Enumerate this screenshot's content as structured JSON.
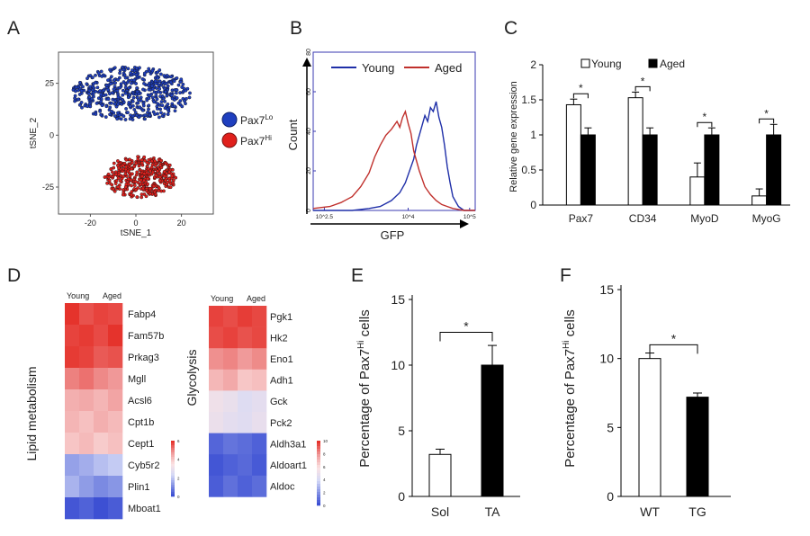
{
  "panel_labels": {
    "a": "A",
    "b": "B",
    "c": "C",
    "d": "D",
    "e": "E",
    "f": "F"
  },
  "chart_data": [
    {
      "panel": "A",
      "type": "scatter",
      "xlabel": "tSNE_1",
      "ylabel": "tSNE_2",
      "xticks": [
        -20,
        0,
        20
      ],
      "yticks": [
        25,
        0,
        -25
      ],
      "xlim": [
        -34,
        34
      ],
      "ylim": [
        -38,
        40
      ],
      "series": [
        {
          "name": "Pax7Lo",
          "label_base": "Pax7",
          "label_sup": "Lo",
          "color": "#1f3fbf",
          "center": [
            -2,
            20
          ],
          "spread": [
            26,
            13
          ]
        },
        {
          "name": "Pax7Hi",
          "label_base": "Pax7",
          "label_sup": "Hi",
          "color": "#e0201c",
          "center": [
            2,
            -20
          ],
          "spread": [
            16,
            10
          ]
        }
      ]
    },
    {
      "panel": "B",
      "type": "line",
      "xlabel": "GFP",
      "ylabel": "Count",
      "yticks": [
        0,
        20,
        40,
        60,
        80
      ],
      "xticks": [
        "10^2.5",
        "10^4",
        "10^5"
      ],
      "xlim": [
        2.3,
        5.2
      ],
      "ylim": [
        0,
        80
      ],
      "series": [
        {
          "name": "Young",
          "color": "#1f2fa8",
          "x": [
            2.3,
            3.0,
            3.3,
            3.5,
            3.7,
            3.85,
            3.95,
            4.05,
            4.1,
            4.15,
            4.2,
            4.25,
            4.3,
            4.35,
            4.4,
            4.45,
            4.5,
            4.55,
            4.6,
            4.65,
            4.7,
            4.75,
            4.8,
            4.9,
            5.0,
            5.2
          ],
          "y": [
            0,
            0,
            1,
            2,
            5,
            9,
            14,
            22,
            26,
            33,
            38,
            43,
            48,
            45,
            52,
            50,
            55,
            47,
            42,
            33,
            22,
            14,
            7,
            2,
            0,
            0
          ]
        },
        {
          "name": "Aged",
          "color": "#c0302c",
          "x": [
            2.3,
            2.6,
            2.8,
            3.0,
            3.15,
            3.3,
            3.4,
            3.5,
            3.6,
            3.7,
            3.8,
            3.85,
            3.9,
            3.95,
            4.0,
            4.05,
            4.1,
            4.2,
            4.3,
            4.4,
            4.5,
            4.6,
            4.7,
            4.8,
            5.0,
            5.2
          ],
          "y": [
            1,
            2,
            4,
            7,
            12,
            19,
            27,
            33,
            38,
            41,
            45,
            42,
            47,
            50,
            44,
            39,
            30,
            20,
            12,
            8,
            5,
            3,
            2,
            1,
            0,
            0
          ]
        }
      ]
    },
    {
      "panel": "C",
      "type": "bar",
      "ylabel": "Relative gene expression",
      "categories": [
        "Pax7",
        "CD34",
        "MyoD",
        "MyoG"
      ],
      "yticks": [
        0,
        0.5,
        1,
        1.5,
        2
      ],
      "ylim": [
        0,
        2
      ],
      "series": [
        {
          "name": "Young",
          "fill": "#ffffff",
          "values": [
            1.43,
            1.53,
            0.4,
            0.13
          ],
          "errors": [
            0.08,
            0.08,
            0.2,
            0.1
          ]
        },
        {
          "name": "Aged",
          "fill": "#000000",
          "values": [
            1.0,
            1.0,
            1.0,
            1.0
          ],
          "errors": [
            0.1,
            0.1,
            0.1,
            0.15
          ]
        }
      ],
      "significance": [
        "*",
        "*",
        "*",
        "*"
      ]
    },
    {
      "panel": "D",
      "type": "heatmap",
      "groups": [
        {
          "title": "Lipid metabolism",
          "columns": [
            "Young",
            "Aged"
          ],
          "rows": [
            "Fabp4",
            "Fam57b",
            "Prkag3",
            "Mgll",
            "Acsl6",
            "Cpt1b",
            "Cept1",
            "Cyb5r2",
            "Plin1",
            "Mboat1"
          ],
          "values": [
            [
              6.6,
              6.2,
              6.4,
              6.3
            ],
            [
              6.4,
              6.5,
              6.3,
              6.6
            ],
            [
              6.5,
              6.4,
              6.1,
              6.2
            ],
            [
              5.6,
              5.8,
              5.5,
              5.3
            ],
            [
              4.9,
              5.0,
              4.8,
              5.1
            ],
            [
              4.8,
              4.6,
              4.9,
              4.7
            ],
            [
              4.5,
              4.7,
              4.4,
              4.6
            ],
            [
              1.7,
              1.9,
              2.2,
              2.4
            ],
            [
              2.0,
              1.6,
              1.3,
              1.5
            ],
            [
              0.4,
              0.6,
              0.3,
              0.5
            ]
          ],
          "scale_ticks": [
            "6",
            "4",
            "2",
            "0"
          ]
        },
        {
          "title": "Glycolysis",
          "columns": [
            "Young",
            "Aged"
          ],
          "rows": [
            "Pgk1",
            "Hk2",
            "Eno1",
            "Adh1",
            "Gck",
            "Pck2",
            "Aldh3a1",
            "Aldoart1",
            "Aldoc"
          ],
          "values": [
            [
              9.7,
              9.5,
              9.8,
              9.6
            ],
            [
              9.5,
              9.7,
              9.4,
              9.6
            ],
            [
              8.2,
              8.4,
              8.0,
              8.3
            ],
            [
              7.2,
              7.6,
              6.8,
              7.0
            ],
            [
              5.4,
              5.1,
              4.5,
              4.8
            ],
            [
              5.2,
              4.8,
              4.6,
              5.0
            ],
            [
              1.0,
              1.4,
              1.2,
              0.9
            ],
            [
              0.6,
              0.9,
              1.1,
              0.7
            ],
            [
              0.8,
              1.3,
              0.9,
              1.2
            ]
          ],
          "scale_ticks": [
            "10",
            "8",
            "6",
            "4",
            "2",
            "0"
          ]
        }
      ]
    },
    {
      "panel": "E",
      "type": "bar",
      "ylabel_base": "Percentage of Pax7",
      "ylabel_sup": "Hi",
      "ylabel_tail": " cells",
      "categories": [
        "Sol",
        "TA"
      ],
      "values": [
        3.2,
        10.0
      ],
      "errors": [
        0.4,
        1.5
      ],
      "fills": [
        "#ffffff",
        "#000000"
      ],
      "yticks": [
        0,
        5,
        10,
        15
      ],
      "ylim": [
        0,
        15
      ],
      "significance": "*"
    },
    {
      "panel": "F",
      "type": "bar",
      "ylabel_base": "Percentage of Pax7",
      "ylabel_sup": "Hi",
      "ylabel_tail": " cells",
      "categories": [
        "WT",
        "TG"
      ],
      "values": [
        10.0,
        7.2
      ],
      "errors": [
        0.4,
        0.3
      ],
      "fills": [
        "#ffffff",
        "#000000"
      ],
      "yticks": [
        0,
        5,
        10,
        15
      ],
      "ylim": [
        0,
        15
      ],
      "significance": "*"
    }
  ]
}
